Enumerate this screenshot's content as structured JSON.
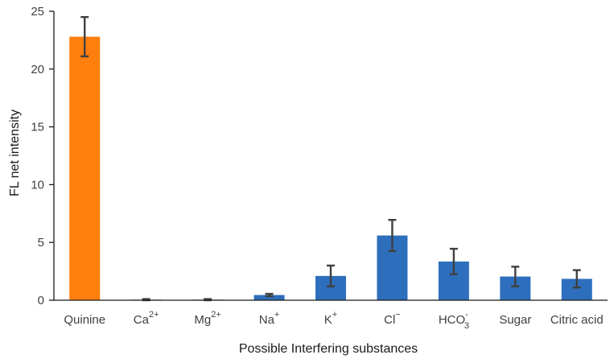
{
  "chart_data": {
    "type": "bar",
    "xlabel": "Possible Interfering substances",
    "ylabel": "FL net intensity",
    "ylim": [
      0,
      25
    ],
    "yticks": [
      0,
      5,
      10,
      15,
      20,
      25
    ],
    "grid": false,
    "legend": "none",
    "categories": [
      {
        "base": "Quinine",
        "sub": "",
        "sup": ""
      },
      {
        "base": "Ca",
        "sub": "",
        "sup": "2+"
      },
      {
        "base": "Mg",
        "sub": "",
        "sup": "2+"
      },
      {
        "base": "Na",
        "sub": "",
        "sup": "+"
      },
      {
        "base": "K",
        "sub": "",
        "sup": "+"
      },
      {
        "base": "Cl",
        "sub": "",
        "sup": "−"
      },
      {
        "base": "HCO",
        "sub": "3",
        "sup": "-"
      },
      {
        "base": "Sugar",
        "sub": "",
        "sup": ""
      },
      {
        "base": "Citric acid",
        "sub": "",
        "sup": ""
      }
    ],
    "values": [
      22.8,
      0.05,
      0.05,
      0.45,
      2.1,
      5.6,
      3.35,
      2.05,
      1.85
    ],
    "errors": [
      1.7,
      0.05,
      0.05,
      0.1,
      0.9,
      1.35,
      1.1,
      0.85,
      0.75
    ],
    "colors": [
      "#ff7f0e",
      "#2e6fbd",
      "#2e6fbd",
      "#2e6fbd",
      "#2e6fbd",
      "#2e6fbd",
      "#2e6fbd",
      "#2e6fbd",
      "#2e6fbd"
    ],
    "error_bar_color": "#404040"
  }
}
